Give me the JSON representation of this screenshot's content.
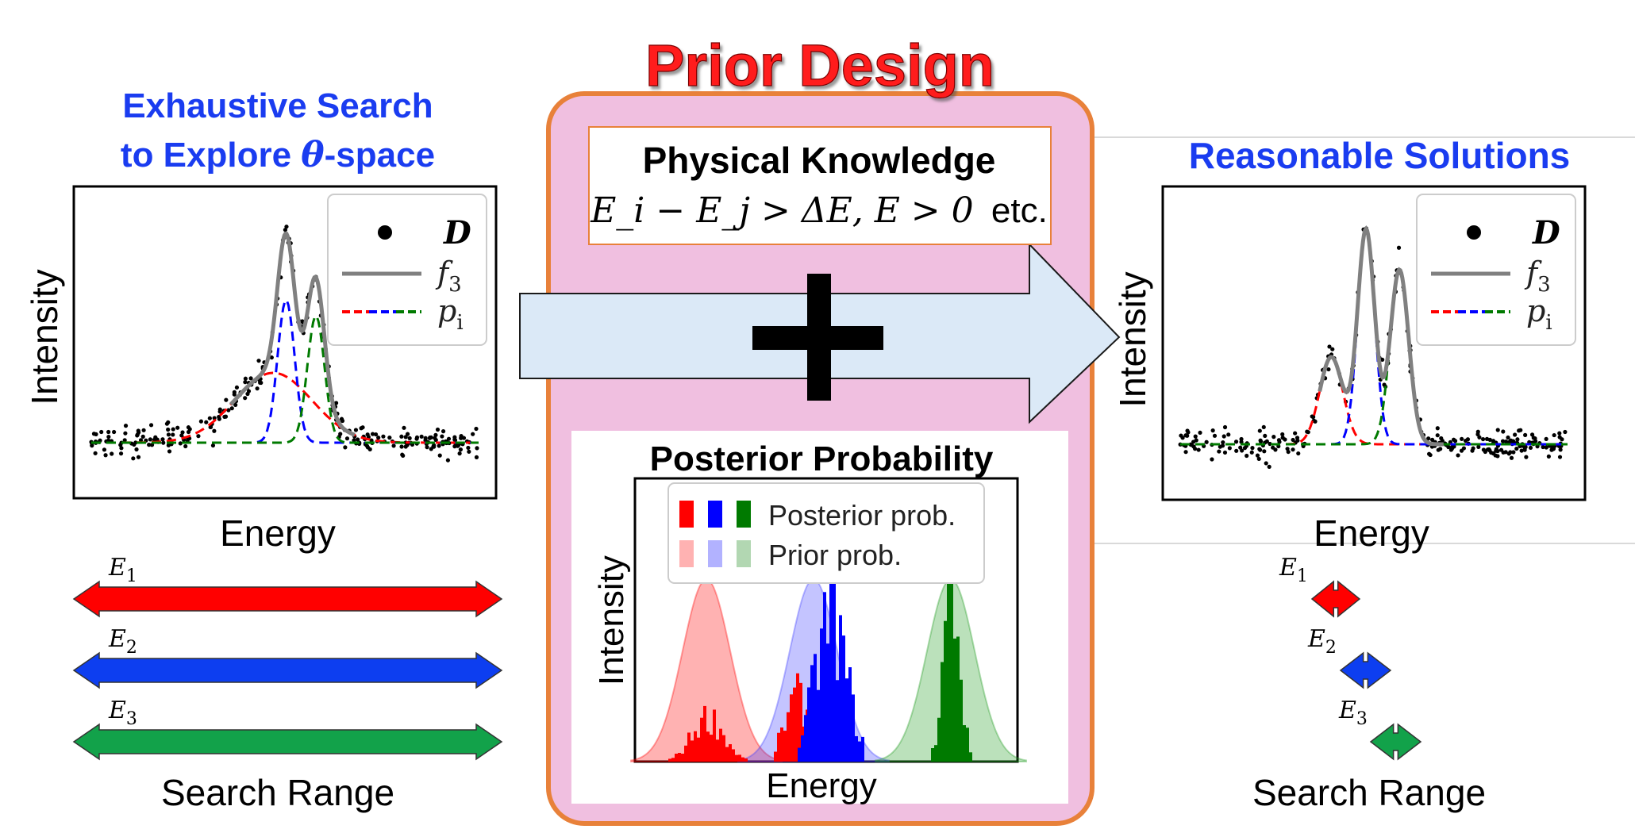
{
  "title": "Prior Design",
  "left_panel": {
    "heading_line1": "Exhaustive Search",
    "heading_line2_pre": "to Explore ",
    "heading_line2_theta": "θ",
    "heading_line2_post": "-space",
    "y_label": "Intensity",
    "x_label": "Energy",
    "legend": {
      "data": "D",
      "fit": "f",
      "fit_sub": "3",
      "peaks": "p",
      "peaks_sub": "i"
    },
    "range_title": "Search Range",
    "ranges": [
      {
        "name": "E",
        "sub": "1",
        "color": "#ff0000"
      },
      {
        "name": "E",
        "sub": "2",
        "color": "#0d3ef0"
      },
      {
        "name": "E",
        "sub": "3",
        "color": "#12a24a"
      }
    ]
  },
  "knowledge": {
    "title": "Physical Knowledge",
    "formula_expr": "E_i − E_j > ΔE, E > 0",
    "formula_suffix": "etc."
  },
  "posterior": {
    "title": "Posterior Probability",
    "y_label": "Intensity",
    "x_label": "Energy",
    "legend": {
      "posterior": "Posterior prob.",
      "prior": "Prior prob."
    }
  },
  "right_panel": {
    "heading": "Reasonable Solutions",
    "y_label": "Intensity",
    "x_label": "Energy",
    "legend": {
      "data": "D",
      "fit": "f",
      "fit_sub": "3",
      "peaks": "p",
      "peaks_sub": "i"
    },
    "range_title": "Search Range",
    "ranges": [
      {
        "name": "E",
        "sub": "1",
        "color": "#ff0000"
      },
      {
        "name": "E",
        "sub": "2",
        "color": "#0d3ef0"
      },
      {
        "name": "E",
        "sub": "3",
        "color": "#12a24a"
      }
    ]
  },
  "colors": {
    "title_red": "#ff1a1a",
    "heading_blue": "#1a3cf0",
    "prior_box_fill": "#f0bfe0",
    "prior_box_border": "#e8813a",
    "arrow_fill": "#dbe9f7",
    "red": "#ff0000",
    "blue": "#0000ff",
    "green": "#007a00",
    "fit_gray": "#808080"
  }
}
